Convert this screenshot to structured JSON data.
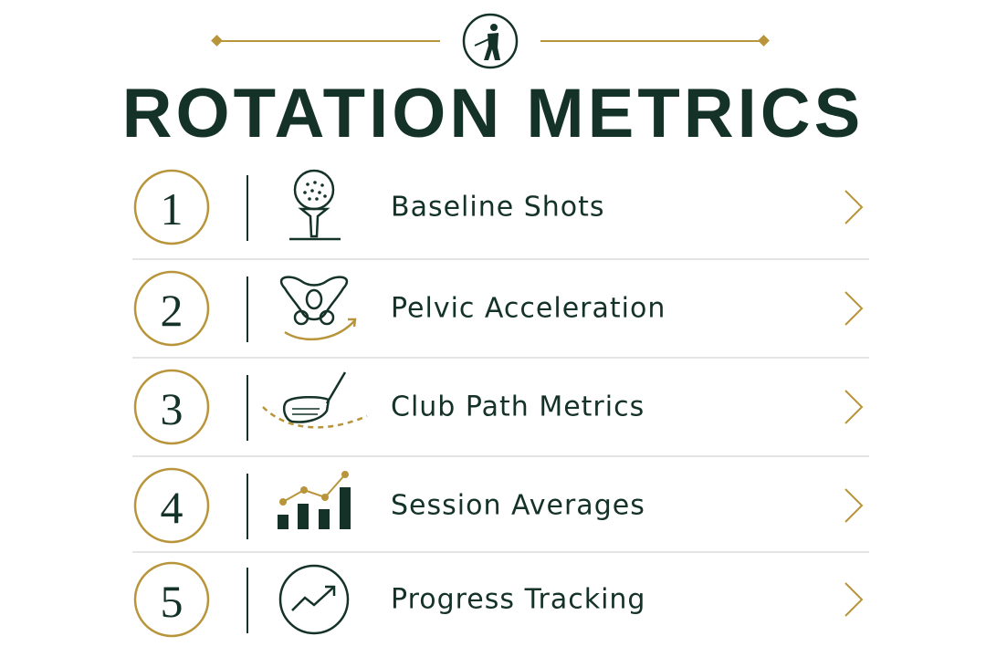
{
  "header": {
    "title": "ROTATION METRICS"
  },
  "items": [
    {
      "number": 1,
      "label": "Baseline Shots"
    },
    {
      "number": 2,
      "label": "Pelvic Acceleration"
    },
    {
      "number": 3,
      "label": "Club Path Metrics"
    },
    {
      "number": 4,
      "label": "Session Averages"
    },
    {
      "number": 5,
      "label": "Progress Tracking"
    }
  ]
}
